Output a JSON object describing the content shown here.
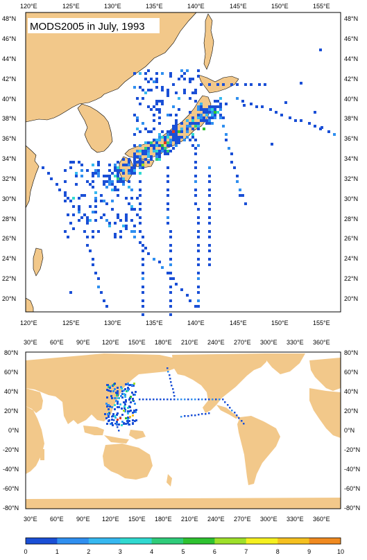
{
  "title": "MODS2005 in July, 1993",
  "colors": {
    "land": "#f2c88a",
    "ocean": "#ffffff",
    "frame": "#000000"
  },
  "regional_map": {
    "lon_ticks": [
      "120°E",
      "125°E",
      "130°E",
      "135°E",
      "140°E",
      "145°E",
      "150°E",
      "155°E"
    ],
    "lat_ticks": [
      "48°N",
      "46°N",
      "44°N",
      "42°N",
      "40°N",
      "38°N",
      "36°N",
      "34°N",
      "32°N",
      "30°N",
      "28°N",
      "26°N",
      "24°N",
      "22°N",
      "20°N"
    ]
  },
  "global_map": {
    "lon_ticks": [
      "30°E",
      "60°E",
      "90°E",
      "120°E",
      "150°E",
      "180°E",
      "210°E",
      "240°E",
      "270°E",
      "300°E",
      "330°E",
      "360°E"
    ],
    "lat_ticks": [
      "80°N",
      "60°N",
      "40°N",
      "20°N",
      "0°N",
      "-20°N",
      "-40°N",
      "-60°N",
      "-80°N"
    ]
  },
  "colorbar": {
    "labels": [
      "0",
      "1",
      "2",
      "3",
      "4",
      "5",
      "6",
      "7",
      "8",
      "9",
      "10"
    ],
    "colors": [
      "#1a4fd6",
      "#2f8ff0",
      "#36b8f0",
      "#30d9d0",
      "#2fcc7a",
      "#2ec230",
      "#9ee02a",
      "#f5f020",
      "#f5c020",
      "#f08a20",
      "#e03a20"
    ]
  }
}
